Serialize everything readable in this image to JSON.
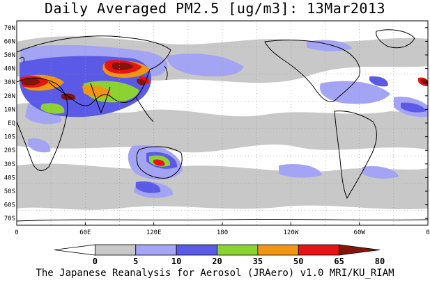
{
  "title": "Daily Averaged PM2.5 [ug/m3]: 13Mar2013",
  "credit": "The Japanese Reanalysis for Aerosol (JRAero) v1.0 MRI/KU_RIAM",
  "map": {
    "projection": "cylindrical equidistant",
    "lon_range": [
      0,
      360
    ],
    "lat_range": [
      -75,
      75
    ],
    "lat_ticks": [
      "70N",
      "60N",
      "50N",
      "40N",
      "30N",
      "20N",
      "10N",
      "EQ",
      "10S",
      "20S",
      "30S",
      "40S",
      "50S",
      "60S",
      "70S"
    ],
    "lat_values": [
      70,
      60,
      50,
      40,
      30,
      20,
      10,
      0,
      -10,
      -20,
      -30,
      -40,
      -50,
      -60,
      -70
    ],
    "lon_ticks": [
      "0",
      "60E",
      "120E",
      "180",
      "120W",
      "60W",
      "0"
    ],
    "lon_values": [
      0,
      60,
      120,
      180,
      240,
      300,
      360
    ],
    "grid": "dotted gray every 30 degrees",
    "colors": {
      "land_coast": "#000000",
      "c_5_10": "#c8c8c8",
      "c_10_20": "#a4a4f4",
      "c_20_35": "#5a5ae6",
      "c_35_50": "#8cd232",
      "c_50_65": "#f09614",
      "c_65_80": "#e61414",
      "c_80p": "#82140a"
    }
  },
  "colorbar": {
    "labels": [
      "0",
      "5",
      "10",
      "20",
      "35",
      "50",
      "65",
      "80"
    ],
    "colors": [
      "#ffffff",
      "#c8c8c8",
      "#a4a4f4",
      "#5a5ae6",
      "#8cd232",
      "#f09614",
      "#e61414",
      "#82140a"
    ]
  }
}
